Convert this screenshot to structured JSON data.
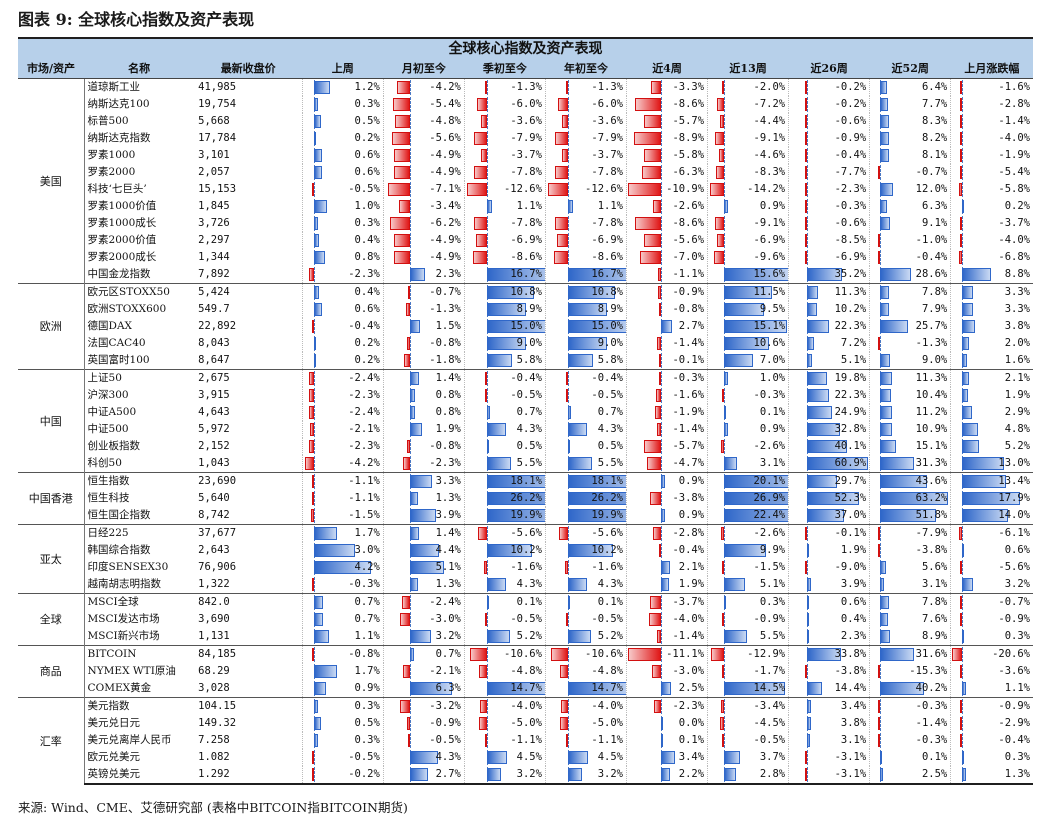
{
  "figure_title": "图表 9: 全球核心指数及资产表现",
  "source": "来源: Wind、CME、艾德研究部 (表格中BITCOIN指BITCOIN期货)",
  "table_title": "全球核心指数及资产表现",
  "headers": [
    "市场/资产",
    "名称",
    "最新收盘价",
    "上周",
    "月初至今",
    "季初至今",
    "年初至今",
    "近4周",
    "近13周",
    "近26周",
    "近52周",
    "上月涨跌幅"
  ],
  "colors": {
    "header_bg": "#b7d0ea",
    "positive": "#2f67c9",
    "negative": "#e01818"
  },
  "groups": [
    {
      "region": "美国",
      "rows": [
        {
          "name": "道琼斯工业",
          "close": "41,985",
          "v": [
            1.2,
            -4.2,
            -1.3,
            -1.3,
            -3.3,
            -2.0,
            -0.2,
            6.4,
            -1.6
          ]
        },
        {
          "name": "纳斯达克100",
          "close": "19,754",
          "v": [
            0.3,
            -5.4,
            -6.0,
            -6.0,
            -8.6,
            -7.2,
            -0.2,
            7.7,
            -2.8
          ]
        },
        {
          "name": "标普500",
          "close": "5,668",
          "v": [
            0.5,
            -4.8,
            -3.6,
            -3.6,
            -5.7,
            -4.4,
            -0.6,
            8.3,
            -1.4
          ]
        },
        {
          "name": "纳斯达克指数",
          "close": "17,784",
          "v": [
            0.2,
            -5.6,
            -7.9,
            -7.9,
            -8.9,
            -9.1,
            -0.9,
            8.2,
            -4.0
          ]
        },
        {
          "name": "罗素1000",
          "close": "3,101",
          "v": [
            0.6,
            -4.9,
            -3.7,
            -3.7,
            -5.8,
            -4.6,
            -0.4,
            8.1,
            -1.9
          ]
        },
        {
          "name": "罗素2000",
          "close": "2,057",
          "v": [
            0.6,
            -4.9,
            -7.8,
            -7.8,
            -6.3,
            -8.3,
            -7.7,
            -0.7,
            -5.4
          ]
        },
        {
          "name": "科技‘七巨头’",
          "close": "15,153",
          "v": [
            -0.5,
            -7.1,
            -12.6,
            -12.6,
            -10.9,
            -14.2,
            -2.3,
            12.0,
            -5.8
          ]
        },
        {
          "name": "罗素1000价值",
          "close": "1,845",
          "v": [
            1.0,
            -3.4,
            1.1,
            1.1,
            -2.6,
            0.9,
            -0.3,
            6.3,
            0.2
          ]
        },
        {
          "name": "罗素1000成长",
          "close": "3,726",
          "v": [
            0.3,
            -6.2,
            -7.8,
            -7.8,
            -8.6,
            -9.1,
            -0.6,
            9.1,
            -3.7
          ]
        },
        {
          "name": "罗素2000价值",
          "close": "2,297",
          "v": [
            0.4,
            -4.9,
            -6.9,
            -6.9,
            -5.6,
            -6.9,
            -8.5,
            -1.0,
            -4.0
          ]
        },
        {
          "name": "罗素2000成长",
          "close": "1,344",
          "v": [
            0.8,
            -4.9,
            -8.6,
            -8.6,
            -7.0,
            -9.6,
            -6.9,
            -0.4,
            -6.8
          ]
        },
        {
          "name": "中国金龙指数",
          "close": "7,892",
          "v": [
            -2.3,
            2.3,
            16.7,
            16.7,
            -1.1,
            15.6,
            35.2,
            28.6,
            8.8
          ]
        }
      ]
    },
    {
      "region": "欧洲",
      "rows": [
        {
          "name": "欧元区STOXX50",
          "close": "5,424",
          "v": [
            0.4,
            -0.7,
            10.8,
            10.8,
            -0.9,
            11.5,
            11.3,
            7.8,
            3.3
          ]
        },
        {
          "name": "欧洲STOXX600",
          "close": "549.7",
          "v": [
            0.6,
            -1.3,
            8.9,
            8.9,
            -0.8,
            9.5,
            10.2,
            7.9,
            3.3
          ]
        },
        {
          "name": "德国DAX",
          "close": "22,892",
          "v": [
            -0.4,
            1.5,
            15.0,
            15.0,
            2.7,
            15.1,
            22.3,
            25.7,
            3.8
          ]
        },
        {
          "name": "法国CAC40",
          "close": "8,043",
          "v": [
            0.2,
            -0.8,
            9.0,
            9.0,
            -1.4,
            10.6,
            7.2,
            -1.3,
            2.0
          ]
        },
        {
          "name": "英国富时100",
          "close": "8,647",
          "v": [
            0.2,
            -1.8,
            5.8,
            5.8,
            -0.1,
            7.0,
            5.1,
            9.0,
            1.6
          ]
        }
      ]
    },
    {
      "region": "中国",
      "rows": [
        {
          "name": "上证50",
          "close": "2,675",
          "v": [
            -2.4,
            1.4,
            -0.4,
            -0.4,
            -0.3,
            1.0,
            19.8,
            11.3,
            2.1
          ]
        },
        {
          "name": "沪深300",
          "close": "3,915",
          "v": [
            -2.3,
            0.8,
            -0.5,
            -0.5,
            -1.6,
            -0.3,
            22.3,
            10.4,
            1.9
          ]
        },
        {
          "name": "中证A500",
          "close": "4,643",
          "v": [
            -2.4,
            0.8,
            0.7,
            0.7,
            -1.9,
            0.1,
            24.9,
            11.2,
            2.9
          ]
        },
        {
          "name": "中证500",
          "close": "5,972",
          "v": [
            -2.1,
            1.9,
            4.3,
            4.3,
            -1.4,
            0.9,
            32.8,
            10.9,
            4.8
          ]
        },
        {
          "name": "创业板指数",
          "close": "2,152",
          "v": [
            -2.3,
            -0.8,
            0.5,
            0.5,
            -5.7,
            -2.6,
            40.1,
            15.1,
            5.2
          ]
        },
        {
          "name": "科创50",
          "close": "1,043",
          "v": [
            -4.2,
            -2.3,
            5.5,
            5.5,
            -4.7,
            3.1,
            60.9,
            31.3,
            13.0
          ]
        }
      ]
    },
    {
      "region": "中国香港",
      "rows": [
        {
          "name": "恒生指数",
          "close": "23,690",
          "v": [
            -1.1,
            3.3,
            18.1,
            18.1,
            0.9,
            20.1,
            29.7,
            43.6,
            13.4
          ]
        },
        {
          "name": "恒生科技",
          "close": "5,640",
          "v": [
            -1.1,
            1.3,
            26.2,
            26.2,
            -3.8,
            26.9,
            52.3,
            63.2,
            17.9
          ]
        },
        {
          "name": "恒生国企指数",
          "close": "8,742",
          "v": [
            -1.5,
            3.9,
            19.9,
            19.9,
            0.9,
            22.4,
            37.0,
            51.8,
            14.0
          ]
        }
      ]
    },
    {
      "region": "亚太",
      "rows": [
        {
          "name": "日经225",
          "close": "37,677",
          "v": [
            1.7,
            1.4,
            -5.6,
            -5.6,
            -2.8,
            -2.6,
            -0.1,
            -7.9,
            -6.1
          ]
        },
        {
          "name": "韩国综合指数",
          "close": "2,643",
          "v": [
            3.0,
            4.4,
            10.2,
            10.2,
            -0.4,
            9.9,
            1.9,
            -3.8,
            0.6
          ]
        },
        {
          "name": "印度SENSEX30",
          "close": "76,906",
          "v": [
            4.2,
            5.1,
            -1.6,
            -1.6,
            2.1,
            -1.5,
            -9.0,
            5.6,
            -5.6
          ]
        },
        {
          "name": "越南胡志明指数",
          "close": "1,322",
          "v": [
            -0.3,
            1.3,
            4.3,
            4.3,
            1.9,
            5.1,
            3.9,
            3.1,
            3.2
          ]
        }
      ]
    },
    {
      "region": "全球",
      "rows": [
        {
          "name": "MSCI全球",
          "close": "842.0",
          "v": [
            0.7,
            -2.4,
            0.1,
            0.1,
            -3.7,
            0.3,
            0.6,
            7.8,
            -0.7
          ]
        },
        {
          "name": "MSCI发达市场",
          "close": "3,690",
          "v": [
            0.7,
            -3.0,
            -0.5,
            -0.5,
            -4.0,
            -0.9,
            0.4,
            7.6,
            -0.9
          ]
        },
        {
          "name": "MSCI新兴市场",
          "close": "1,131",
          "v": [
            1.1,
            3.2,
            5.2,
            5.2,
            -1.4,
            5.5,
            2.3,
            8.9,
            0.3
          ]
        }
      ]
    },
    {
      "region": "商品",
      "rows": [
        {
          "name": "BITCOIN",
          "close": "84,185",
          "v": [
            -0.8,
            0.7,
            -10.6,
            -10.6,
            -11.1,
            -12.9,
            33.8,
            31.6,
            -20.6
          ]
        },
        {
          "name": "NYMEX WTI原油",
          "close": "68.29",
          "v": [
            1.7,
            -2.1,
            -4.8,
            -4.8,
            -3.0,
            -1.7,
            -3.8,
            -15.3,
            -3.6
          ]
        },
        {
          "name": "COMEX黄金",
          "close": "3,028",
          "v": [
            0.9,
            6.3,
            14.7,
            14.7,
            2.5,
            14.5,
            14.4,
            40.2,
            1.1
          ]
        }
      ]
    },
    {
      "region": "汇率",
      "rows": [
        {
          "name": "美元指数",
          "close": "104.15",
          "v": [
            0.3,
            -3.2,
            -4.0,
            -4.0,
            -2.3,
            -3.4,
            3.4,
            -0.3,
            -0.9
          ]
        },
        {
          "name": "美元兑日元",
          "close": "149.32",
          "v": [
            0.5,
            -0.9,
            -5.0,
            -5.0,
            0.0,
            -4.5,
            3.8,
            -1.4,
            -2.9
          ]
        },
        {
          "name": "美元兑离岸人民币",
          "close": "7.258",
          "v": [
            0.3,
            -0.5,
            -1.1,
            -1.1,
            0.1,
            -0.5,
            3.1,
            -0.3,
            -0.4
          ]
        },
        {
          "name": "欧元兑美元",
          "close": "1.082",
          "v": [
            -0.5,
            4.3,
            4.5,
            4.5,
            3.4,
            3.7,
            -3.1,
            0.1,
            0.3
          ]
        },
        {
          "name": "英镑兑美元",
          "close": "1.292",
          "v": [
            -0.2,
            2.7,
            3.2,
            3.2,
            2.2,
            2.8,
            -3.1,
            2.5,
            1.3
          ]
        }
      ]
    }
  ]
}
